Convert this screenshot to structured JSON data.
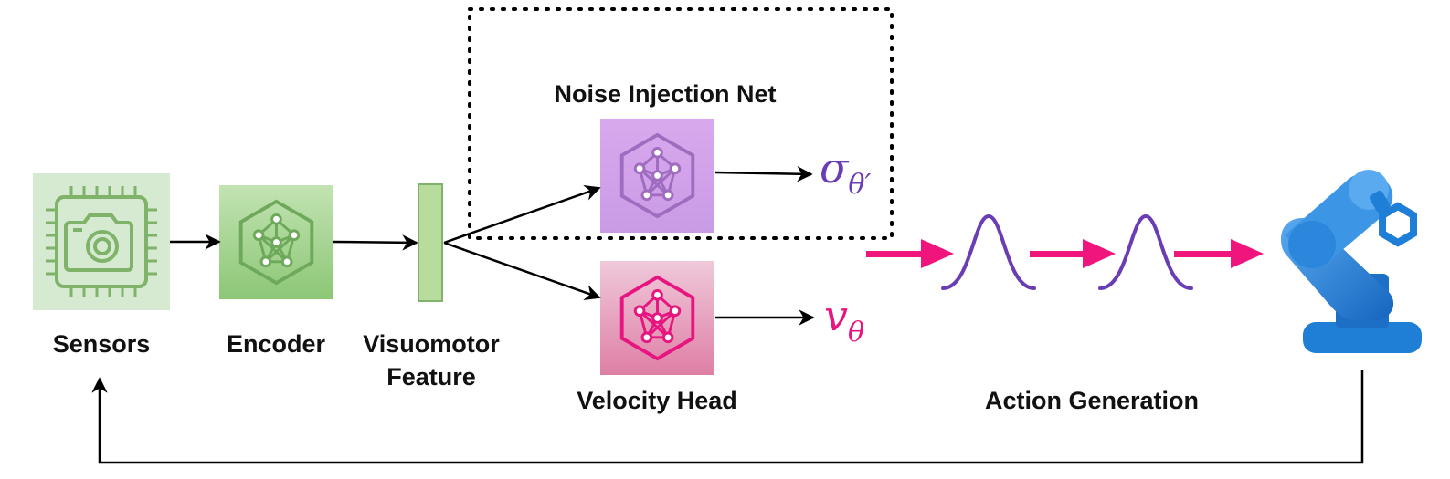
{
  "nodes": {
    "sensors": {
      "label": "Sensors",
      "icon": "camera-chip-icon",
      "bg_color": "#d5ead0",
      "icon_color": "#7fb36a"
    },
    "encoder": {
      "label": "Encoder",
      "icon": "neural-network-icon",
      "bg_color": "#9fd089",
      "icon_color": "#6ea85a"
    },
    "feature": {
      "label_line1": "Visuomotor",
      "label_line2": "Feature",
      "bg_color": "#b7dc9d",
      "border_color": "#7fb36a"
    },
    "noise_net": {
      "label": "Noise Injection Net",
      "icon": "neural-network-icon",
      "bg_color": "#d6a8ec",
      "icon_color": "#a06cc0"
    },
    "velocity_head": {
      "label": "Velocity Head",
      "icon": "neural-network-icon",
      "bg_color": "#e79bb8",
      "icon_color": "#e6157f"
    },
    "robot": {
      "icon": "robot-arm-icon",
      "color": "#1f7fd6"
    }
  },
  "outputs": {
    "sigma": {
      "symbol": "σ",
      "subscript": "θ′",
      "color": "#6a3db4"
    },
    "velocity": {
      "symbol": "v",
      "subscript": "θ",
      "color": "#e6157f"
    }
  },
  "action_generation": {
    "label": "Action Generation",
    "arrow_color": "#f0157d",
    "curve_color": "#6a3db4"
  },
  "edges": {
    "arrow_color": "#000000"
  }
}
